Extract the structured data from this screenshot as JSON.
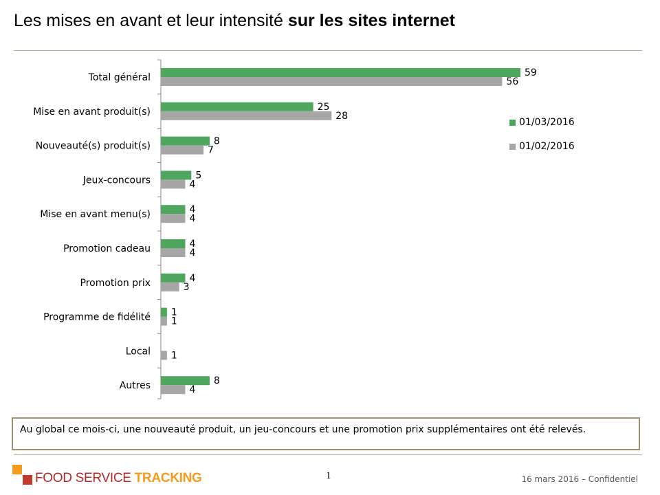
{
  "title": {
    "normal": "Les mises en avant et leur intensité ",
    "bold": "sur les sites internet"
  },
  "chart_data": {
    "type": "bar",
    "orientation": "horizontal",
    "title": "",
    "xlabel": "",
    "ylabel": "",
    "xlim": [
      0,
      60
    ],
    "categories": [
      "Total général",
      "Mise en avant produit(s)",
      "Nouveauté(s) produit(s)",
      "Jeux-concours",
      "Mise en avant menu(s)",
      "Promotion cadeau",
      "Promotion prix",
      "Programme de fidélité",
      "Local",
      "Autres"
    ],
    "series": [
      {
        "name": "01/03/2016",
        "color": "#4ea65f",
        "values": [
          59,
          25,
          8,
          5,
          4,
          4,
          4,
          1,
          null,
          8
        ]
      },
      {
        "name": "01/02/2016",
        "color": "#a6a6a6",
        "values": [
          56,
          28,
          7,
          4,
          4,
          4,
          3,
          1,
          1,
          4
        ]
      }
    ],
    "legend_position": "right"
  },
  "note": "Au global ce mois-ci, une nouveauté produit, un jeu-concours et une promotion prix supplémentaires ont été relevés.",
  "logo": {
    "part1": "FOOD SERVICE ",
    "part2": "TRACKING"
  },
  "page_number": "1",
  "footer": "16 mars 2016 – Confidentiel"
}
